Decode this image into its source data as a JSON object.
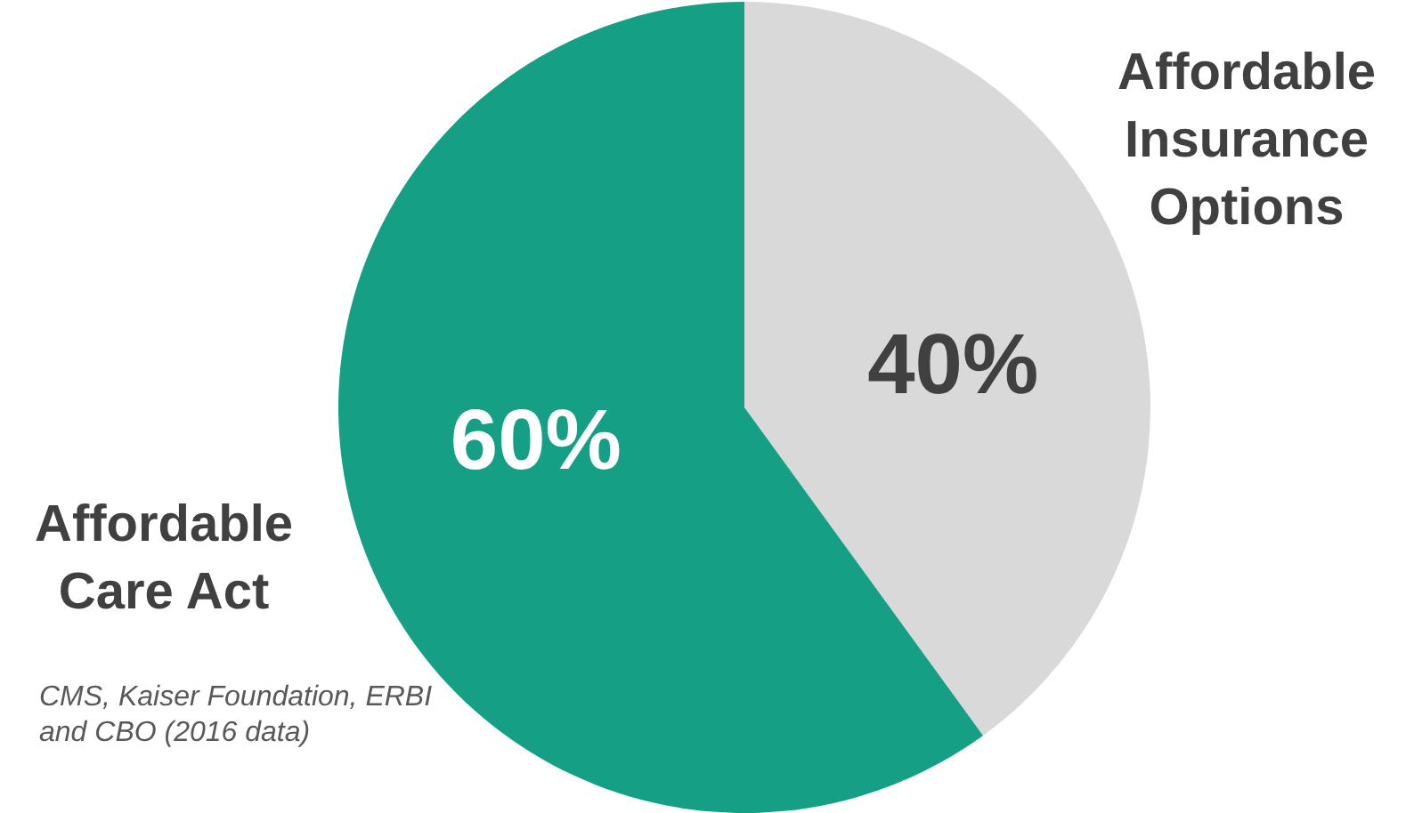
{
  "chart_data": {
    "type": "pie",
    "categories": [
      "Affordable Insurance Options",
      "Affordable Care Act"
    ],
    "values": [
      40,
      60
    ],
    "colors": [
      "#d9d9d9",
      "#15a085"
    ],
    "value_labels": [
      "40%",
      "60%"
    ],
    "legend": false,
    "annotations": [
      "CMS, Kaiser Foundation, ERBI and CBO (2016 data)"
    ]
  }
}
